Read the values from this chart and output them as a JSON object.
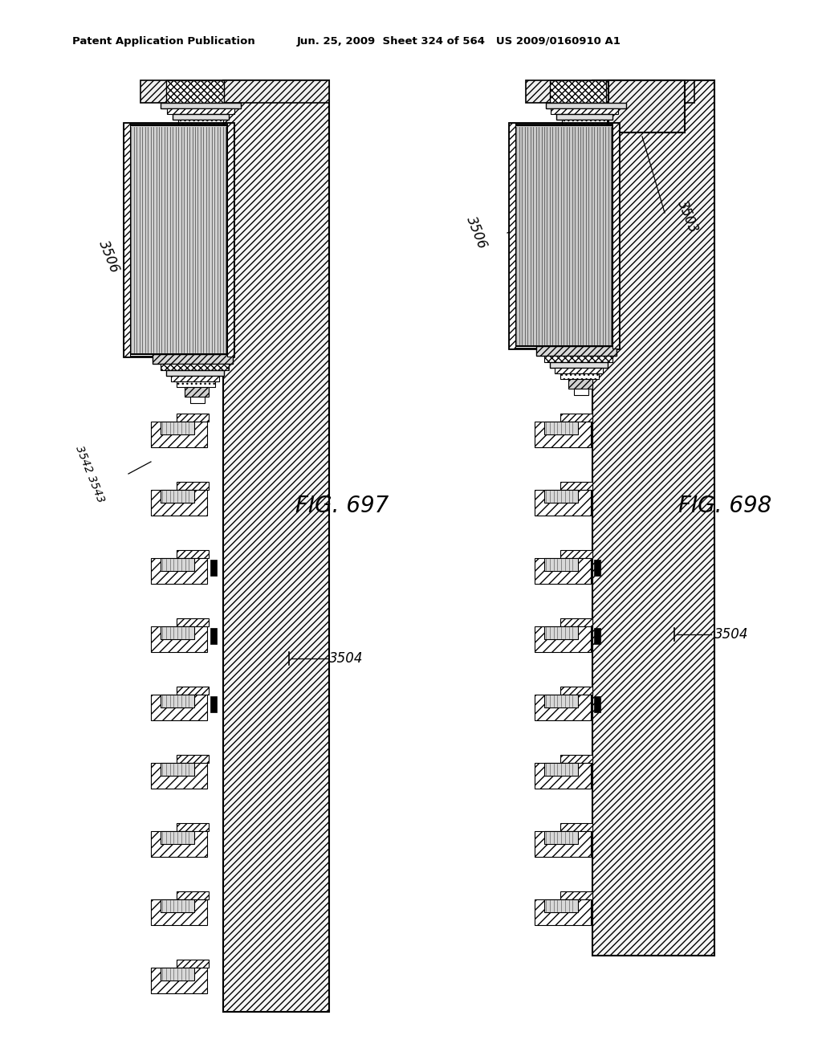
{
  "bg_color": "#ffffff",
  "header_left": "Patent Application Publication",
  "header_right": "Jun. 25, 2009  Sheet 324 of 564   US 2009/0160910 A1",
  "fig1_label": "FIG. 697",
  "fig2_label": "FIG. 698"
}
